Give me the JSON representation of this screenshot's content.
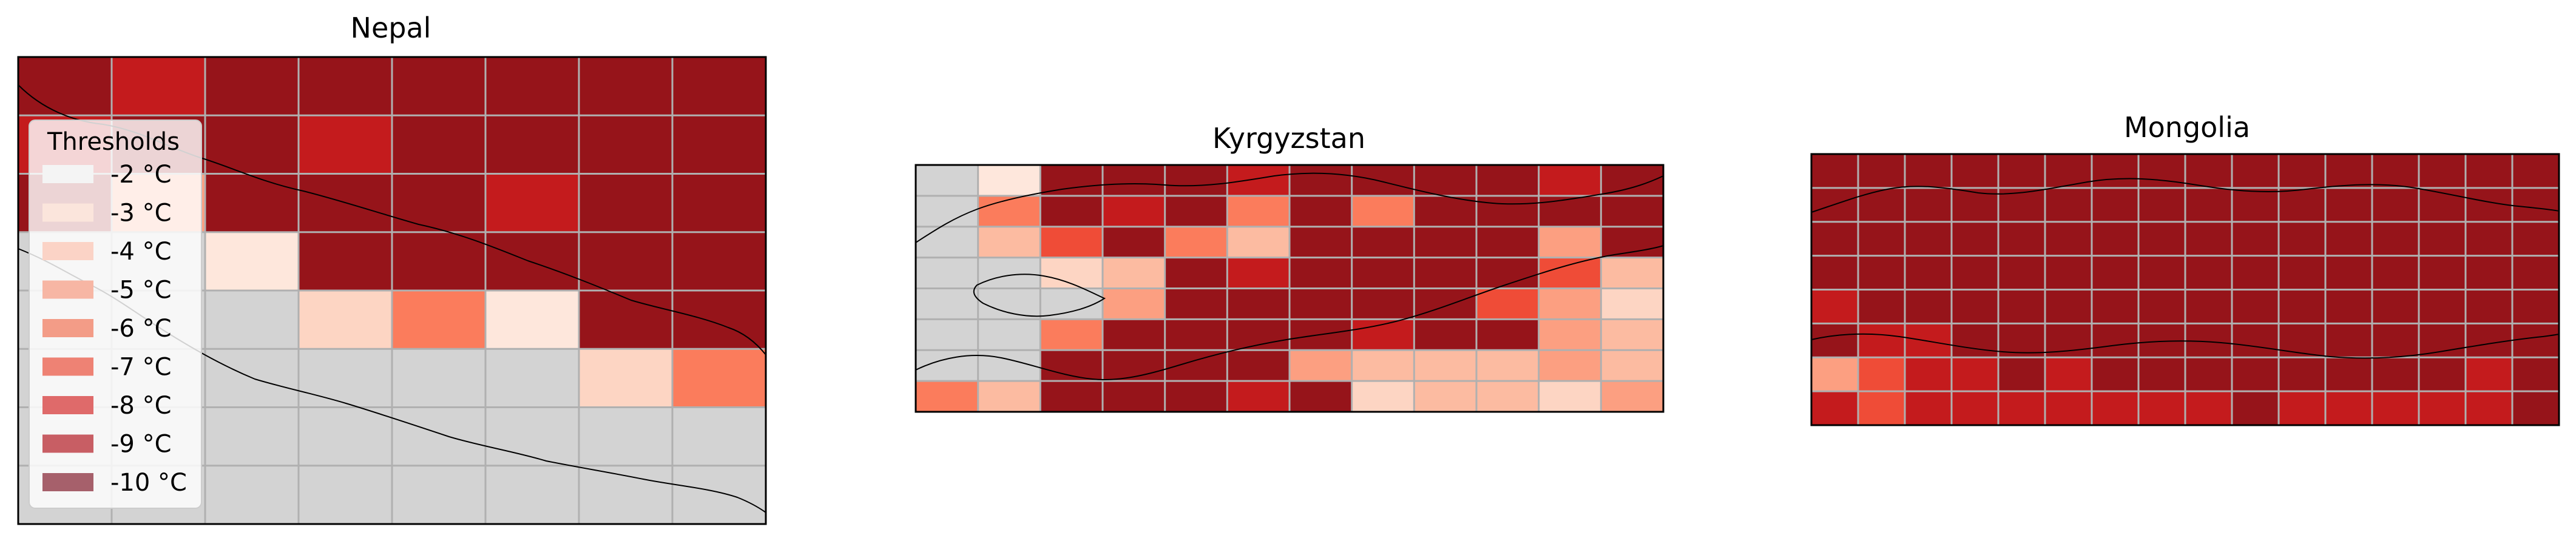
{
  "colors": {
    "background": "#ffffff",
    "no_data": "#d3d3d3",
    "grid": "#b0b0b0",
    "border": "#000000",
    "palette": [
      "#fee7dc",
      "#fdd5c3",
      "#fcbba1",
      "#fc9f81",
      "#fb7c5c",
      "#ef4c37",
      "#c41b1d",
      "#96141a"
    ]
  },
  "chart_data": [
    {
      "type": "heatmap",
      "title": "Nepal",
      "map": "Nepal",
      "grid": true,
      "legend": {
        "title": "Thresholds",
        "placement": "left",
        "entries": [
          "-2 °C",
          "-3 °C",
          "-4 °C",
          "-5 °C",
          "-6 °C",
          "-7 °C",
          "-8 °C",
          "-9 °C",
          "-10 °C"
        ],
        "swatch_colors": [
          "#f4f4f4",
          "#fbe5dc",
          "#fbd3c6",
          "#f7b6a4",
          "#f39c87",
          "#ee8274",
          "#df6a6a",
          "#c85e64",
          "#a6606b"
        ]
      },
      "grid_cells": [
        [
          7,
          6,
          7,
          7,
          7,
          7,
          7,
          7
        ],
        [
          6,
          7,
          7,
          6,
          7,
          7,
          7,
          7
        ],
        [
          7,
          3,
          7,
          7,
          7,
          6,
          7,
          7
        ],
        [
          -1,
          -1,
          0,
          7,
          7,
          7,
          7,
          7
        ],
        [
          -1,
          -1,
          -1,
          1,
          4,
          0,
          7,
          7
        ],
        [
          -1,
          -1,
          -1,
          -1,
          -1,
          -1,
          1,
          4
        ],
        [
          -1,
          -1,
          -1,
          -1,
          -1,
          -1,
          -1,
          -1
        ],
        [
          -1,
          -1,
          -1,
          -1,
          -1,
          -1,
          -1,
          -1
        ]
      ]
    },
    {
      "type": "heatmap",
      "title": "Kyrgyzstan",
      "map": "Kyrgyzstan",
      "grid": true,
      "grid_cells": [
        [
          -1,
          0,
          7,
          7,
          7,
          6,
          7,
          7,
          7,
          7,
          6,
          7
        ],
        [
          -1,
          4,
          7,
          6,
          7,
          4,
          7,
          4,
          7,
          7,
          7,
          7
        ],
        [
          -1,
          2,
          5,
          7,
          4,
          2,
          7,
          7,
          7,
          7,
          3,
          7
        ],
        [
          -1,
          -1,
          1,
          2,
          7,
          6,
          7,
          7,
          7,
          7,
          5,
          2
        ],
        [
          -1,
          -1,
          -1,
          3,
          7,
          7,
          7,
          7,
          7,
          5,
          3,
          1
        ],
        [
          -1,
          -1,
          4,
          7,
          7,
          7,
          7,
          6,
          7,
          7,
          3,
          2
        ],
        [
          -1,
          -1,
          7,
          7,
          7,
          7,
          3,
          2,
          2,
          2,
          3,
          2
        ],
        [
          4,
          2,
          7,
          7,
          7,
          6,
          7,
          1,
          2,
          2,
          1,
          3
        ]
      ]
    },
    {
      "type": "heatmap",
      "title": "Mongolia",
      "map": "Mongolia",
      "grid": true,
      "grid_cells": [
        [
          7,
          7,
          7,
          7,
          7,
          7,
          7,
          7,
          7,
          7,
          7,
          7,
          7,
          7,
          7,
          7
        ],
        [
          7,
          7,
          7,
          7,
          7,
          7,
          7,
          7,
          7,
          7,
          7,
          7,
          7,
          7,
          7,
          7
        ],
        [
          7,
          7,
          7,
          7,
          7,
          7,
          7,
          7,
          7,
          7,
          7,
          7,
          7,
          7,
          7,
          7
        ],
        [
          7,
          7,
          7,
          7,
          7,
          7,
          7,
          7,
          7,
          7,
          7,
          7,
          7,
          7,
          7,
          7
        ],
        [
          6,
          7,
          7,
          7,
          7,
          7,
          7,
          7,
          7,
          7,
          7,
          7,
          7,
          7,
          7,
          7
        ],
        [
          7,
          6,
          6,
          7,
          7,
          7,
          7,
          7,
          7,
          7,
          7,
          7,
          7,
          7,
          7,
          7
        ],
        [
          3,
          5,
          6,
          6,
          7,
          6,
          7,
          7,
          7,
          7,
          7,
          7,
          7,
          7,
          6,
          7
        ],
        [
          6,
          5,
          6,
          6,
          6,
          6,
          6,
          6,
          6,
          7,
          6,
          6,
          6,
          6,
          6,
          7
        ]
      ]
    }
  ]
}
